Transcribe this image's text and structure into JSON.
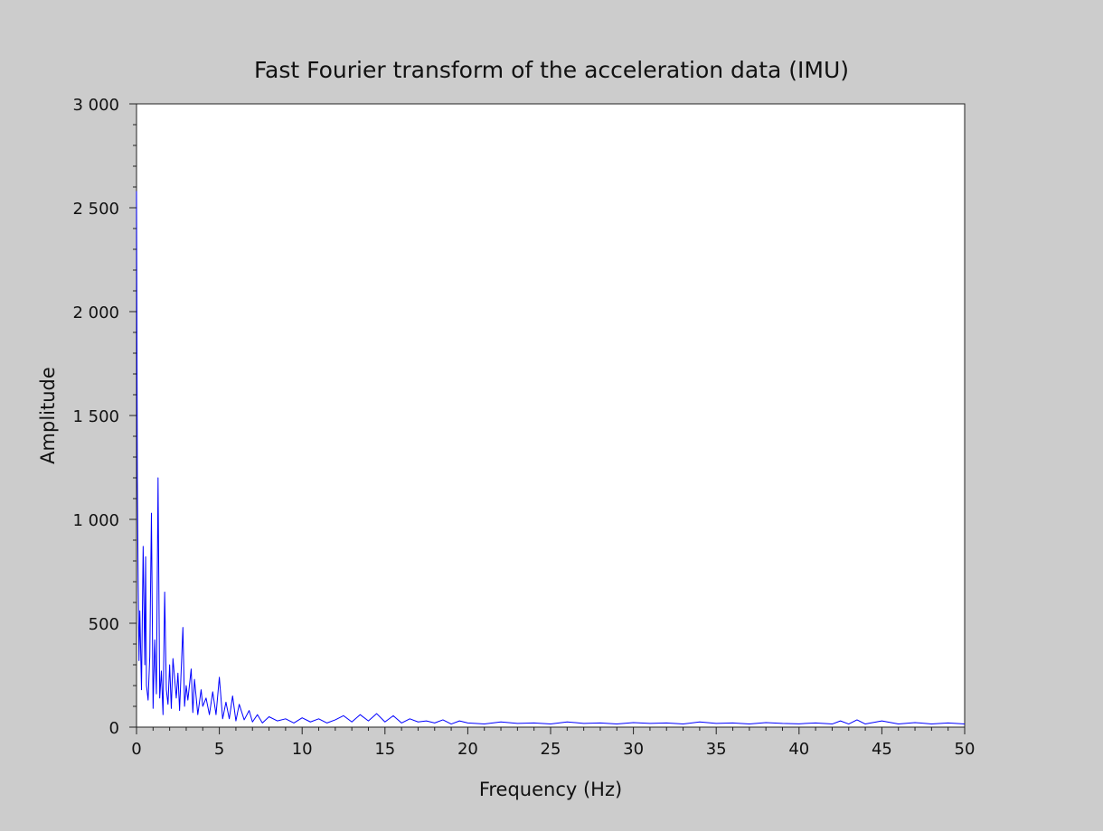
{
  "chart_data": {
    "type": "line",
    "title": "Fast Fourier transform of the acceleration data (IMU)",
    "xlabel": "Frequency (Hz)",
    "ylabel": "Amplitude",
    "xlim": [
      0,
      50
    ],
    "ylim": [
      0,
      3000
    ],
    "x_ticks": [
      {
        "value": 0,
        "label": "0"
      },
      {
        "value": 5,
        "label": "5"
      },
      {
        "value": 10,
        "label": "10"
      },
      {
        "value": 15,
        "label": "15"
      },
      {
        "value": 20,
        "label": "20"
      },
      {
        "value": 25,
        "label": "25"
      },
      {
        "value": 30,
        "label": "30"
      },
      {
        "value": 35,
        "label": "35"
      },
      {
        "value": 40,
        "label": "40"
      },
      {
        "value": 45,
        "label": "45"
      },
      {
        "value": 50,
        "label": "50"
      }
    ],
    "y_ticks": [
      {
        "value": 0,
        "label": "0"
      },
      {
        "value": 500,
        "label": "500"
      },
      {
        "value": 1000,
        "label": "1 000"
      },
      {
        "value": 1500,
        "label": "1 500"
      },
      {
        "value": 2000,
        "label": "2 000"
      },
      {
        "value": 2500,
        "label": "2 500"
      },
      {
        "value": 3000,
        "label": "3 000"
      }
    ],
    "grid": false,
    "legend": "none",
    "line_color": "#0000ff",
    "background": "#ffffff",
    "figure_background": "#cccccc",
    "series": [
      {
        "x": [
          0,
          0.05,
          0.1,
          0.15,
          0.2,
          0.3,
          0.4,
          0.5,
          0.55,
          0.6,
          0.7,
          0.8,
          0.9,
          1.0,
          1.1,
          1.2,
          1.3,
          1.4,
          1.5,
          1.6,
          1.7,
          1.8,
          1.9,
          2.0,
          2.1,
          2.2,
          2.4,
          2.5,
          2.6,
          2.8,
          2.9,
          3.0,
          3.1,
          3.3,
          3.4,
          3.5,
          3.7,
          3.9,
          4.0,
          4.2,
          4.4,
          4.6,
          4.8,
          5.0,
          5.2,
          5.4,
          5.6,
          5.8,
          6.0,
          6.2,
          6.5,
          6.8,
          7.0,
          7.3,
          7.6,
          8.0,
          8.5,
          9.0,
          9.5,
          10.0,
          10.5,
          11.0,
          11.5,
          12.0,
          12.5,
          13.0,
          13.5,
          14.0,
          14.5,
          15.0,
          15.5,
          16.0,
          16.5,
          17.0,
          17.5,
          18.0,
          18.5,
          19.0,
          19.5,
          20.0,
          21.0,
          22.0,
          23.0,
          24.0,
          25.0,
          26.0,
          27.0,
          28.0,
          29.0,
          30.0,
          31.0,
          32.0,
          33.0,
          34.0,
          35.0,
          36.0,
          37.0,
          38.0,
          39.0,
          40.0,
          41.0,
          42.0,
          42.5,
          43.0,
          43.5,
          44.0,
          45.0,
          46.0,
          47.0,
          48.0,
          49.0,
          50.0
        ],
        "values": [
          2580,
          1200,
          700,
          320,
          560,
          180,
          870,
          300,
          820,
          200,
          130,
          340,
          1030,
          90,
          420,
          160,
          1200,
          140,
          270,
          60,
          650,
          180,
          110,
          300,
          90,
          330,
          140,
          260,
          80,
          480,
          100,
          200,
          130,
          280,
          70,
          230,
          60,
          180,
          100,
          140,
          60,
          170,
          60,
          240,
          40,
          120,
          40,
          150,
          30,
          110,
          35,
          80,
          25,
          60,
          20,
          50,
          30,
          40,
          20,
          45,
          25,
          40,
          20,
          35,
          55,
          25,
          60,
          30,
          65,
          25,
          55,
          20,
          40,
          25,
          30,
          20,
          35,
          15,
          30,
          20,
          15,
          25,
          18,
          20,
          15,
          25,
          18,
          20,
          15,
          22,
          18,
          20,
          15,
          25,
          18,
          20,
          15,
          22,
          18,
          16,
          20,
          15,
          30,
          15,
          35,
          15,
          30,
          15,
          22,
          15,
          20,
          15
        ]
      }
    ]
  }
}
